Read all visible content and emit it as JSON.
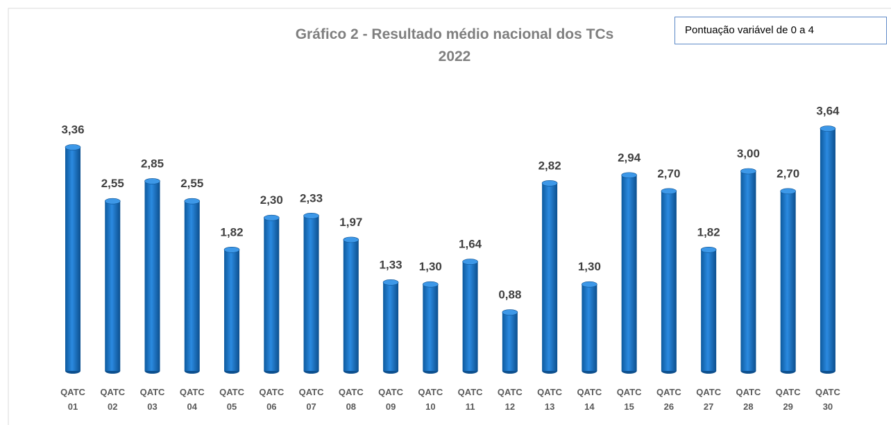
{
  "chart_data": {
    "type": "bar",
    "title": "Gráfico 2 - Resultado médio nacional dos TCs",
    "subtitle": "2022",
    "annotation": "Pontuação variável de 0 a 4",
    "categories": [
      "QATC 01",
      "QATC 02",
      "QATC 03",
      "QATC 04",
      "QATC 05",
      "QATC 06",
      "QATC 07",
      "QATC 08",
      "QATC 09",
      "QATC 10",
      "QATC 11",
      "QATC 12",
      "QATC 13",
      "QATC 14",
      "QATC 15",
      "QATC 26",
      "QATC 27",
      "QATC 28",
      "QATC 29",
      "QATC 30"
    ],
    "values": [
      3.36,
      2.55,
      2.85,
      2.55,
      1.82,
      2.3,
      2.33,
      1.97,
      1.33,
      1.3,
      1.64,
      0.88,
      2.82,
      1.3,
      2.94,
      2.7,
      1.82,
      3.0,
      2.7,
      3.64
    ],
    "value_labels": [
      "3,36",
      "2,55",
      "2,85",
      "2,55",
      "1,82",
      "2,30",
      "2,33",
      "1,97",
      "1,33",
      "1,30",
      "1,64",
      "0,88",
      "2,82",
      "1,30",
      "2,94",
      "2,70",
      "1,82",
      "3,00",
      "2,70",
      "3,64"
    ],
    "color": "#1a72c0"
  }
}
